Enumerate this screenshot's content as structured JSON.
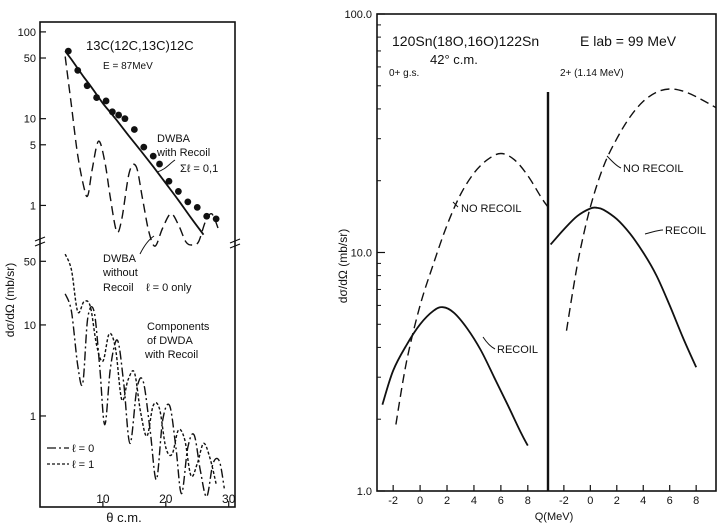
{
  "chart_data": [
    {
      "type": "line",
      "panel": "left",
      "title": "13C(12C,13C)12C",
      "energy": "E = 87MeV",
      "xlabel": "θ c.m.",
      "ylabel": "dσ/dΩ (mb/sr)",
      "x_ticks": [
        "10",
        "20",
        "30"
      ],
      "xlim": [
        0,
        31
      ],
      "y_scale": "log",
      "upper": {
        "ylim": [
          0.35,
          130
        ],
        "y_ticks": [
          "100",
          "50",
          "10",
          "5",
          "1"
        ],
        "series": [
          {
            "name": "DWBA with Recoil Σℓ=0,1",
            "style": "solid",
            "points": [
              [
                4,
                60
              ],
              [
                5,
                48
              ],
              [
                6,
                38
              ],
              [
                7,
                30
              ],
              [
                8,
                24
              ],
              [
                9,
                19
              ],
              [
                10,
                15
              ],
              [
                12,
                10
              ],
              [
                14,
                6.5
              ],
              [
                16,
                4.3
              ],
              [
                18,
                2.8
              ],
              [
                20,
                1.8
              ],
              [
                22,
                1.15
              ],
              [
                24,
                0.72
              ],
              [
                26,
                0.46
              ]
            ]
          },
          {
            "name": "DWBA without Recoil ℓ=0 only",
            "style": "dashed",
            "points": [
              [
                4,
                52
              ],
              [
                5,
                14
              ],
              [
                6,
                3.8
              ],
              [
                7,
                1.6
              ],
              [
                7.6,
                1.3
              ],
              [
                8.3,
                2.6
              ],
              [
                9.3,
                5.5
              ],
              [
                10.3,
                3.2
              ],
              [
                11.2,
                1.2
              ],
              [
                12.2,
                0.5
              ],
              [
                13,
                0.7
              ],
              [
                14.2,
                2.4
              ],
              [
                15.3,
                2.8
              ],
              [
                16.3,
                1.2
              ],
              [
                17.3,
                0.5
              ],
              [
                18.3,
                0.34
              ],
              [
                19.5,
                0.55
              ],
              [
                20.8,
                0.8
              ],
              [
                22,
                0.6
              ],
              [
                23.2,
                0.38
              ],
              [
                24.2,
                0.35
              ],
              [
                25.2,
                0.38
              ],
              [
                26.3,
                0.65
              ],
              [
                27.3,
                0.8
              ],
              [
                28.3,
                0.55
              ]
            ]
          },
          {
            "name": "data",
            "style": "marker",
            "points": [
              [
                4.5,
                60
              ],
              [
                6,
                36
              ],
              [
                7.5,
                24
              ],
              [
                9,
                17.5
              ],
              [
                10.5,
                16
              ],
              [
                11.5,
                12
              ],
              [
                12.5,
                11
              ],
              [
                13.5,
                10
              ],
              [
                15,
                7.5
              ],
              [
                16.5,
                4.7
              ],
              [
                18,
                3.7
              ],
              [
                19,
                3.0
              ],
              [
                20.5,
                1.9
              ],
              [
                22,
                1.45
              ],
              [
                23.5,
                1.1
              ],
              [
                25,
                0.95
              ],
              [
                26.5,
                0.75
              ],
              [
                28,
                0.7
              ]
            ]
          }
        ]
      },
      "lower": {
        "ylim": [
          0.1,
          70
        ],
        "y_ticks": [
          "50",
          "10",
          "1"
        ],
        "series": [
          {
            "name": "ℓ=0",
            "style": "dash-dot",
            "points": [
              [
                4,
                22
              ],
              [
                5,
                14
              ],
              [
                6,
                3.6
              ],
              [
                6.8,
                2.3
              ],
              [
                7.6,
                12
              ],
              [
                8.6,
                14
              ],
              [
                9.5,
                3.4
              ],
              [
                10.3,
                0.8
              ],
              [
                11.2,
                3.4
              ],
              [
                12.3,
                6.8
              ],
              [
                13.3,
                2.3
              ],
              [
                14.3,
                0.5
              ],
              [
                15.4,
                2.0
              ],
              [
                16.4,
                2.4
              ],
              [
                17.5,
                0.7
              ],
              [
                18.5,
                0.2
              ],
              [
                19.5,
                0.9
              ],
              [
                20.6,
                1.3
              ],
              [
                21.6,
                0.45
              ],
              [
                22.5,
                0.14
              ],
              [
                23.5,
                0.45
              ],
              [
                24.5,
                0.62
              ],
              [
                25.5,
                0.25
              ],
              [
                26.5,
                0.13
              ],
              [
                27.5,
                0.3
              ],
              [
                28.5,
                0.32
              ],
              [
                29.3,
                0.16
              ]
            ]
          },
          {
            "name": "ℓ=1",
            "style": "dotted",
            "points": [
              [
                4,
                60
              ],
              [
                5,
                40
              ],
              [
                6,
                14
              ],
              [
                7,
                18
              ],
              [
                8,
                16
              ],
              [
                9,
                6
              ],
              [
                10,
                4
              ],
              [
                11,
                8
              ],
              [
                12,
                5.5
              ],
              [
                13,
                1.5
              ],
              [
                14,
                2.5
              ],
              [
                15,
                3
              ],
              [
                16,
                1.1
              ],
              [
                17,
                0.6
              ],
              [
                18,
                1.3
              ],
              [
                19,
                1.2
              ],
              [
                20,
                0.45
              ],
              [
                21,
                0.38
              ],
              [
                22,
                0.7
              ],
              [
                23,
                0.55
              ],
              [
                24,
                0.22
              ],
              [
                25,
                0.3
              ],
              [
                26,
                0.5
              ],
              [
                27,
                0.35
              ],
              [
                28,
                0.18
              ]
            ]
          }
        ]
      },
      "annotations": [
        "DWBA",
        "with Recoil",
        "Σℓ = 0,1",
        "DWBA",
        "without",
        "Recoil",
        "ℓ = 0 only",
        "Components",
        "of DWDA",
        "with Recoil",
        "ℓ = 0",
        "ℓ = 1"
      ]
    },
    {
      "type": "line",
      "panel": "right",
      "title": "120Sn(18O,16O)122Sn",
      "energy": "E lab = 99 MeV",
      "angle": "42° c.m.",
      "xlabel": "Q(MeV)",
      "ylabel": "dσ/dΩ (mb/sr)",
      "y_scale": "log",
      "ylim": [
        1.0,
        100.0
      ],
      "y_ticks": [
        "100.0",
        "10.0",
        "1.0"
      ],
      "subpanels": [
        {
          "label": "0+ g.s.",
          "xlim": [
            -3.2,
            9.5
          ],
          "x_ticks": [
            "-2",
            "0",
            "2",
            "4",
            "6",
            "8"
          ],
          "series": [
            {
              "name": "NO RECOIL",
              "style": "dashed",
              "points": [
                [
                  -1.8,
                  1.9
                ],
                [
                  -1,
                  3.5
                ],
                [
                  0,
                  6
                ],
                [
                  1,
                  9
                ],
                [
                  2,
                  13
                ],
                [
                  3,
                  17.5
                ],
                [
                  4,
                  21.5
                ],
                [
                  5,
                  24.5
                ],
                [
                  6,
                  26
                ],
                [
                  7,
                  24.5
                ],
                [
                  8,
                  21
                ],
                [
                  9,
                  17
                ],
                [
                  9.5,
                  15.5
                ]
              ]
            },
            {
              "name": "RECOIL",
              "style": "solid",
              "points": [
                [
                  -2.8,
                  2.3
                ],
                [
                  -2,
                  3.2
                ],
                [
                  -1,
                  4.1
                ],
                [
                  0,
                  5
                ],
                [
                  1,
                  5.7
                ],
                [
                  1.7,
                  5.9
                ],
                [
                  2.5,
                  5.6
                ],
                [
                  3.5,
                  4.8
                ],
                [
                  4.5,
                  3.9
                ],
                [
                  5.5,
                  3.0
                ],
                [
                  6.5,
                  2.3
                ],
                [
                  7.5,
                  1.75
                ],
                [
                  8,
                  1.55
                ]
              ]
            }
          ]
        },
        {
          "label": "2+ (1.14 MeV)",
          "xlim": [
            -3.2,
            9.5
          ],
          "x_ticks": [
            "-2",
            "0",
            "2",
            "4",
            "6",
            "8"
          ],
          "series": [
            {
              "name": "NO RECOIL",
              "style": "dashed",
              "points": [
                [
                  -1.8,
                  4.7
                ],
                [
                  -1.3,
                  7
                ],
                [
                  -0.8,
                  10
                ],
                [
                  0,
                  15.5
                ],
                [
                  1,
                  23
                ],
                [
                  2,
                  30
                ],
                [
                  3,
                  37
                ],
                [
                  4,
                  43
                ],
                [
                  5,
                  47
                ],
                [
                  6,
                  48.5
                ],
                [
                  7,
                  47.5
                ],
                [
                  8,
                  45
                ],
                [
                  9.5,
                  40.5
                ]
              ]
            },
            {
              "name": "RECOIL",
              "style": "solid",
              "points": [
                [
                  -3,
                  10.8
                ],
                [
                  -2,
                  12.5
                ],
                [
                  -1,
                  14.2
                ],
                [
                  0,
                  15.3
                ],
                [
                  0.5,
                  15.4
                ],
                [
                  1,
                  15.1
                ],
                [
                  2,
                  13.8
                ],
                [
                  3,
                  12
                ],
                [
                  4,
                  10
                ],
                [
                  5,
                  8
                ],
                [
                  6,
                  6
                ],
                [
                  7,
                  4.4
                ],
                [
                  8,
                  3.3
                ]
              ]
            }
          ]
        }
      ]
    }
  ]
}
